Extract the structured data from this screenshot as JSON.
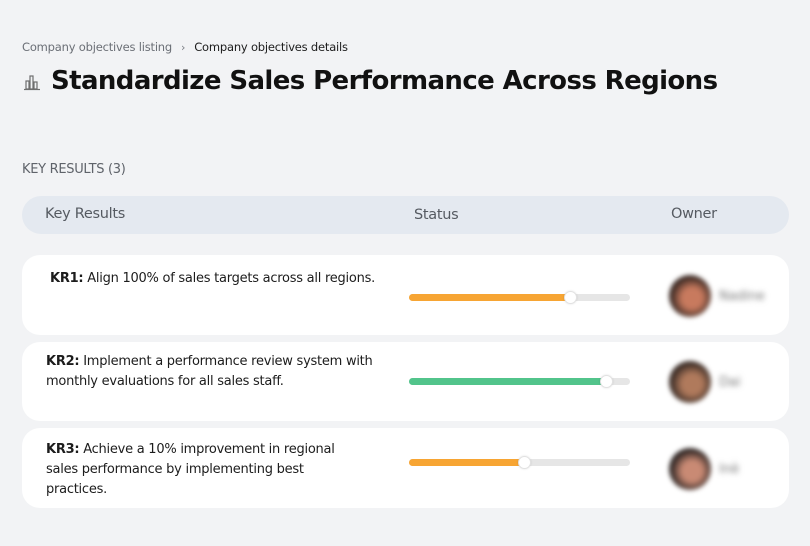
{
  "breadcrumb": {
    "items": [
      "Company objectives listing",
      "Company objectives details"
    ],
    "separator": "›"
  },
  "page": {
    "title": "Standardize Sales Performance Across Regions",
    "icon": "buildings-chart-icon"
  },
  "key_results_section": {
    "label": "KEY RESULTS (3)",
    "count": 3
  },
  "table": {
    "headers": {
      "key_results": "Key Results",
      "status": "Status",
      "owner": "Owner"
    },
    "rows": [
      {
        "id": "KR1:",
        "text": " Align 100% of sales targets across all regions.",
        "progress": 73,
        "color": "#f7a533",
        "owner": "Nadine",
        "avatar_colors": [
          "#3b2a24",
          "#c87a5e"
        ]
      },
      {
        "id": "KR2:",
        "text": " Implement a performance review system with monthly evaluations for all sales staff.",
        "progress": 89,
        "color": "#52c48b",
        "owner": "Dai",
        "avatar_colors": [
          "#3a2c26",
          "#b07a5c"
        ]
      },
      {
        "id": "KR3:",
        "text": " Achieve a 10% improvement in regional sales performance by implementing best practices.",
        "progress": 52,
        "color": "#f7a533",
        "owner": "Inè",
        "avatar_colors": [
          "#2e2624",
          "#c98a74"
        ]
      }
    ]
  },
  "colors": {
    "background": "#f2f3f5",
    "header_bg": "#e4e9f0",
    "track": "#e6e6e6",
    "orange": "#f7a533",
    "green": "#52c48b"
  }
}
